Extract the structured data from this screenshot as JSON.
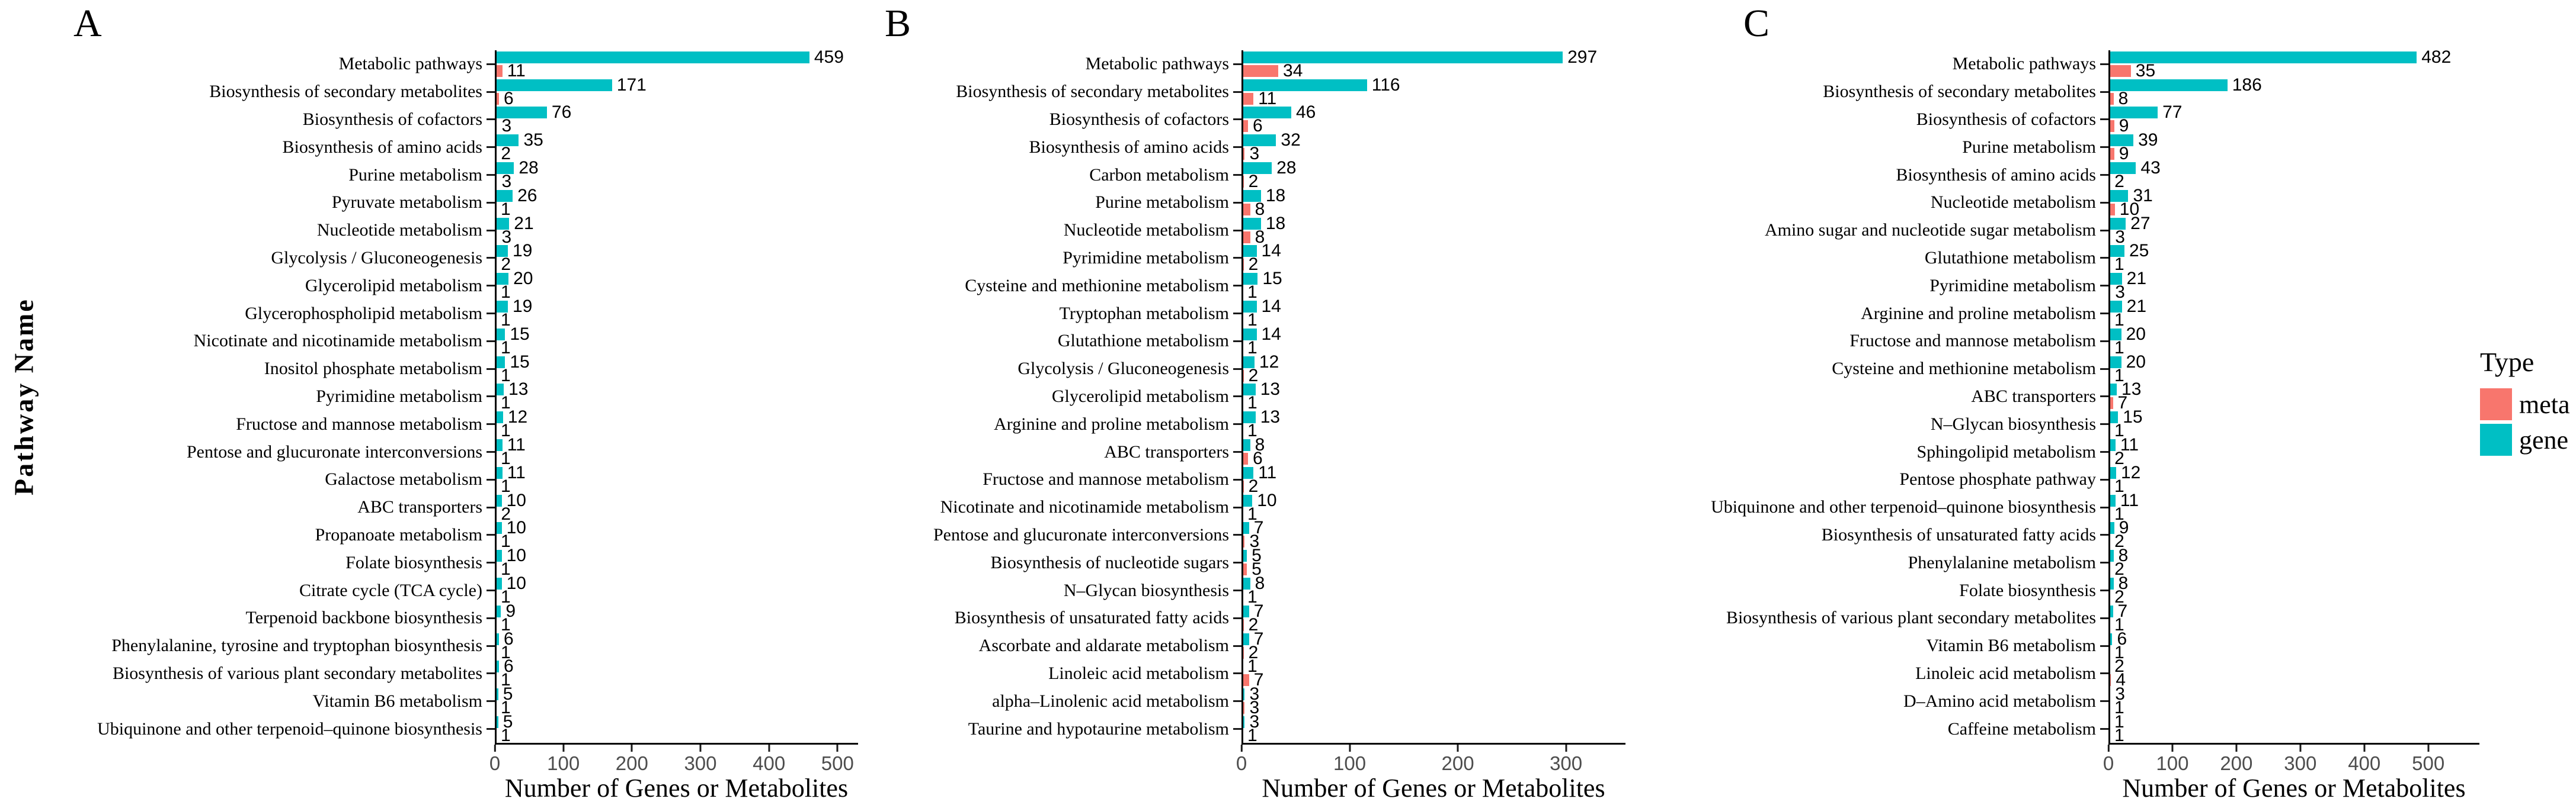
{
  "figure": {
    "y_axis_label": "Pathway Name",
    "x_axis_label": "Number of Genes or Metabolites",
    "legend": {
      "title": "Type",
      "items": [
        {
          "label": "meta",
          "color": "#F8766D"
        },
        {
          "label": "gene",
          "color": "#00BFC4"
        }
      ]
    },
    "colors": {
      "gene": "#00BFC4",
      "meta": "#F8766D",
      "axis": "#000000",
      "tick_label": "#4d4d4d"
    }
  },
  "chart_data": [
    {
      "type": "bar",
      "panel_label": "A",
      "orientation": "horizontal",
      "xlabel": "Number of Genes or Metabolites",
      "ylabel": "Pathway Name",
      "grid": false,
      "legend_position": "right",
      "xticks": [
        0,
        100,
        200,
        300,
        400,
        500
      ],
      "xlim": [
        0,
        530
      ],
      "categories": [
        "Metabolic pathways",
        "Biosynthesis of secondary metabolites",
        "Biosynthesis of cofactors",
        "Biosynthesis of amino acids",
        "Purine metabolism",
        "Pyruvate metabolism",
        "Nucleotide metabolism",
        "Glycolysis / Gluconeogenesis",
        "Glycerolipid metabolism",
        "Glycerophospholipid metabolism",
        "Nicotinate and nicotinamide metabolism",
        "Inositol phosphate metabolism",
        "Pyrimidine metabolism",
        "Fructose and mannose metabolism",
        "Pentose and glucuronate interconversions",
        "Galactose metabolism",
        "ABC transporters",
        "Propanoate metabolism",
        "Folate biosynthesis",
        "Citrate cycle (TCA cycle)",
        "Terpenoid backbone biosynthesis",
        "Phenylalanine, tyrosine and tryptophan biosynthesis",
        "Biosynthesis of various plant secondary metabolites",
        "Vitamin B6 metabolism",
        "Ubiquinone and other terpenoid–quinone biosynthesis"
      ],
      "series": [
        {
          "name": "gene",
          "color": "#00BFC4",
          "values": [
            459,
            171,
            76,
            35,
            28,
            26,
            21,
            19,
            20,
            19,
            15,
            15,
            13,
            12,
            11,
            11,
            10,
            10,
            10,
            10,
            9,
            6,
            6,
            5,
            5
          ]
        },
        {
          "name": "meta",
          "color": "#F8766D",
          "values": [
            11,
            6,
            3,
            2,
            3,
            1,
            3,
            2,
            1,
            1,
            1,
            1,
            1,
            1,
            1,
            1,
            2,
            1,
            1,
            1,
            1,
            1,
            1,
            1,
            1
          ]
        }
      ]
    },
    {
      "type": "bar",
      "panel_label": "B",
      "orientation": "horizontal",
      "xlabel": "Number of Genes or Metabolites",
      "ylabel": "Pathway Name",
      "grid": false,
      "legend_position": "right",
      "xticks": [
        0,
        100,
        200,
        300
      ],
      "xlim": [
        0,
        355
      ],
      "categories": [
        "Metabolic pathways",
        "Biosynthesis of secondary metabolites",
        "Biosynthesis of cofactors",
        "Biosynthesis of amino acids",
        "Carbon metabolism",
        "Purine metabolism",
        "Nucleotide metabolism",
        "Pyrimidine metabolism",
        "Cysteine and methionine metabolism",
        "Tryptophan metabolism",
        "Glutathione metabolism",
        "Glycolysis / Gluconeogenesis",
        "Glycerolipid metabolism",
        "Arginine and proline metabolism",
        "ABC transporters",
        "Fructose and mannose metabolism",
        "Nicotinate and nicotinamide metabolism",
        "Pentose and glucuronate interconversions",
        "Biosynthesis of nucleotide sugars",
        "N–Glycan biosynthesis",
        "Biosynthesis of unsaturated fatty acids",
        "Ascorbate and aldarate metabolism",
        "Linoleic acid metabolism",
        "alpha–Linolenic acid metabolism",
        "Taurine and hypotaurine metabolism"
      ],
      "series": [
        {
          "name": "gene",
          "color": "#00BFC4",
          "values": [
            297,
            116,
            46,
            32,
            28,
            18,
            18,
            14,
            15,
            14,
            14,
            12,
            13,
            13,
            8,
            11,
            10,
            7,
            5,
            8,
            7,
            7,
            1,
            3,
            3
          ]
        },
        {
          "name": "meta",
          "color": "#F8766D",
          "values": [
            34,
            11,
            6,
            3,
            2,
            8,
            8,
            2,
            1,
            1,
            1,
            2,
            1,
            1,
            6,
            2,
            1,
            3,
            5,
            1,
            2,
            2,
            7,
            3,
            1
          ]
        }
      ]
    },
    {
      "type": "bar",
      "panel_label": "C",
      "orientation": "horizontal",
      "xlabel": "Number of Genes or Metabolites",
      "ylabel": "Pathway Name",
      "grid": false,
      "legend_position": "right",
      "xticks": [
        0,
        100,
        200,
        300,
        400,
        500
      ],
      "xlim": [
        0,
        580
      ],
      "categories": [
        "Metabolic pathways",
        "Biosynthesis of secondary metabolites",
        "Biosynthesis of cofactors",
        "Purine metabolism",
        "Biosynthesis of amino acids",
        "Nucleotide metabolism",
        "Amino sugar and nucleotide sugar metabolism",
        "Glutathione metabolism",
        "Pyrimidine metabolism",
        "Arginine and proline metabolism",
        "Fructose and mannose metabolism",
        "Cysteine and methionine metabolism",
        "ABC transporters",
        "N–Glycan biosynthesis",
        "Sphingolipid metabolism",
        "Pentose phosphate pathway",
        "Ubiquinone and other terpenoid–quinone biosynthesis",
        "Biosynthesis of unsaturated fatty acids",
        "Phenylalanine metabolism",
        "Folate biosynthesis",
        "Biosynthesis of various plant secondary metabolites",
        "Vitamin B6 metabolism",
        "Linoleic acid metabolism",
        "D–Amino acid metabolism",
        "Caffeine metabolism"
      ],
      "series": [
        {
          "name": "gene",
          "color": "#00BFC4",
          "values": [
            482,
            186,
            77,
            39,
            43,
            31,
            27,
            25,
            21,
            21,
            20,
            20,
            13,
            15,
            11,
            12,
            11,
            9,
            8,
            8,
            7,
            6,
            2,
            3,
            1
          ]
        },
        {
          "name": "meta",
          "color": "#F8766D",
          "values": [
            35,
            8,
            9,
            9,
            2,
            10,
            3,
            1,
            3,
            1,
            1,
            1,
            7,
            1,
            2,
            1,
            1,
            2,
            2,
            2,
            1,
            1,
            4,
            1,
            1
          ]
        }
      ]
    }
  ]
}
